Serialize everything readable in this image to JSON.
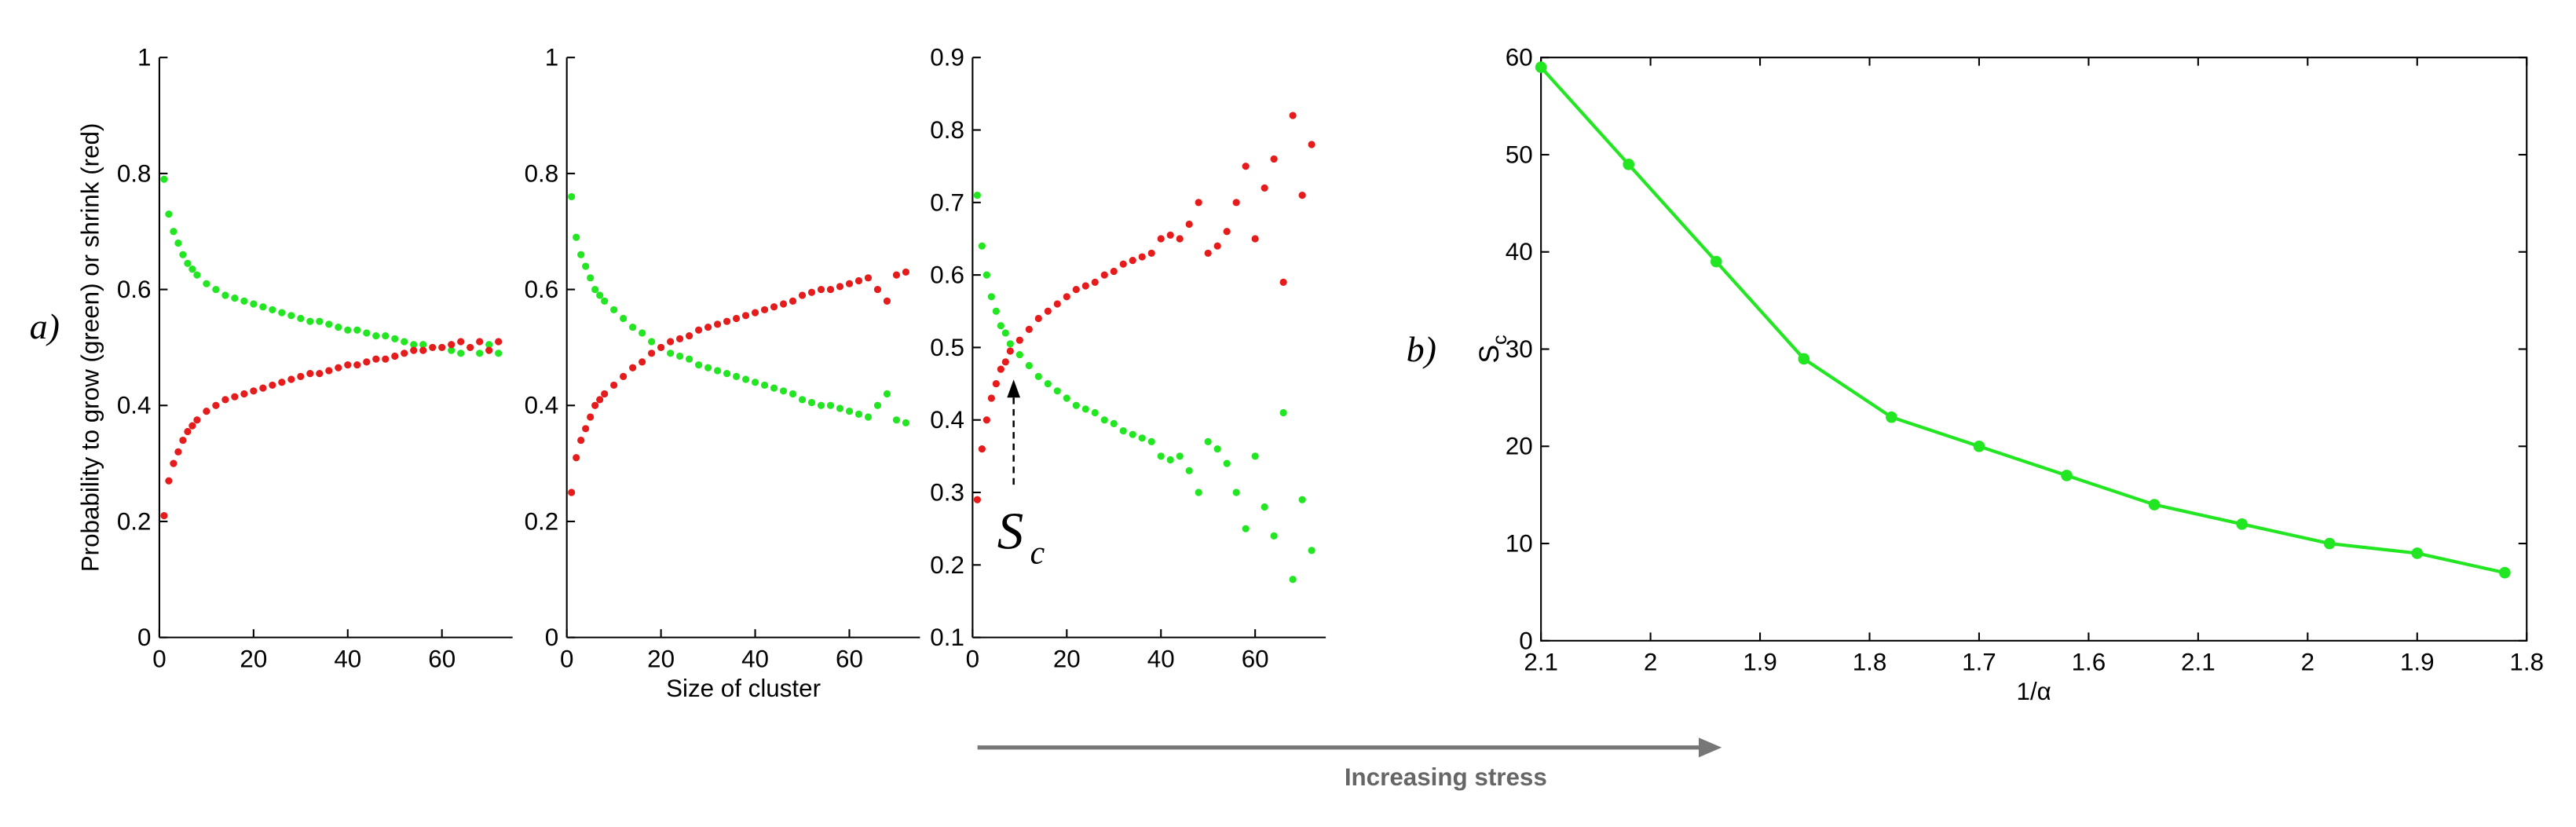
{
  "labels": {
    "a": "a)",
    "b": "b)",
    "stress": "Increasing stress"
  },
  "chart_data": [
    {
      "type": "scatter",
      "ylabel": "Probability to grow (green) or shrink (red)",
      "xlim": [
        0,
        75
      ],
      "xticks": [
        0,
        20,
        40,
        60
      ],
      "ylim": [
        0,
        1
      ],
      "yticks": [
        0,
        0.2,
        0.4,
        0.6,
        0.8,
        1
      ],
      "x": [
        1,
        2,
        3,
        4,
        5,
        6,
        7,
        8,
        10,
        12,
        14,
        16,
        18,
        20,
        22,
        24,
        26,
        28,
        30,
        32,
        34,
        36,
        38,
        40,
        42,
        44,
        46,
        48,
        50,
        52,
        54,
        56,
        58,
        60,
        62,
        64,
        66,
        68,
        70,
        72
      ],
      "series": [
        {
          "color": "#22e622",
          "values": [
            0.79,
            0.73,
            0.7,
            0.68,
            0.66,
            0.645,
            0.635,
            0.625,
            0.61,
            0.6,
            0.59,
            0.585,
            0.58,
            0.575,
            0.57,
            0.565,
            0.56,
            0.555,
            0.55,
            0.545,
            0.545,
            0.54,
            0.535,
            0.53,
            0.53,
            0.525,
            0.52,
            0.52,
            0.515,
            0.51,
            0.505,
            0.505,
            0.5,
            0.5,
            0.495,
            0.49,
            0.5,
            0.49,
            0.505,
            0.49
          ]
        },
        {
          "color": "#e61c1c",
          "values": [
            0.21,
            0.27,
            0.3,
            0.32,
            0.34,
            0.355,
            0.365,
            0.375,
            0.39,
            0.4,
            0.41,
            0.415,
            0.42,
            0.425,
            0.43,
            0.435,
            0.44,
            0.445,
            0.45,
            0.455,
            0.455,
            0.46,
            0.465,
            0.47,
            0.47,
            0.475,
            0.48,
            0.48,
            0.485,
            0.49,
            0.495,
            0.495,
            0.5,
            0.5,
            0.505,
            0.51,
            0.5,
            0.51,
            0.495,
            0.51
          ]
        }
      ]
    },
    {
      "type": "scatter",
      "xlabel": "Size of cluster",
      "xlim": [
        0,
        75
      ],
      "xticks": [
        0,
        20,
        40,
        60
      ],
      "ylim": [
        0,
        1
      ],
      "yticks": [
        0,
        0.2,
        0.4,
        0.6,
        0.8,
        1
      ],
      "x": [
        1,
        2,
        3,
        4,
        5,
        6,
        7,
        8,
        10,
        12,
        14,
        16,
        18,
        20,
        22,
        24,
        26,
        28,
        30,
        32,
        34,
        36,
        38,
        40,
        42,
        44,
        46,
        48,
        50,
        52,
        54,
        56,
        58,
        60,
        62,
        64,
        66,
        68,
        70,
        72
      ],
      "series": [
        {
          "color": "#22e622",
          "values": [
            0.76,
            0.69,
            0.66,
            0.64,
            0.62,
            0.6,
            0.59,
            0.58,
            0.565,
            0.55,
            0.535,
            0.525,
            0.51,
            0.5,
            0.49,
            0.485,
            0.48,
            0.47,
            0.465,
            0.46,
            0.455,
            0.45,
            0.445,
            0.44,
            0.435,
            0.43,
            0.425,
            0.42,
            0.41,
            0.405,
            0.4,
            0.4,
            0.395,
            0.39,
            0.385,
            0.38,
            0.4,
            0.42,
            0.375,
            0.37
          ]
        },
        {
          "color": "#e61c1c",
          "values": [
            0.25,
            0.31,
            0.34,
            0.36,
            0.38,
            0.4,
            0.41,
            0.42,
            0.435,
            0.45,
            0.465,
            0.475,
            0.49,
            0.5,
            0.51,
            0.515,
            0.52,
            0.53,
            0.535,
            0.54,
            0.545,
            0.55,
            0.555,
            0.56,
            0.565,
            0.57,
            0.575,
            0.58,
            0.59,
            0.595,
            0.6,
            0.6,
            0.605,
            0.61,
            0.615,
            0.62,
            0.6,
            0.58,
            0.625,
            0.63
          ]
        }
      ]
    },
    {
      "type": "scatter",
      "annotation": {
        "text": "S",
        "sub": "c"
      },
      "xlim": [
        0,
        75
      ],
      "xticks": [
        0,
        20,
        40,
        60
      ],
      "ylim": [
        0.1,
        0.9
      ],
      "yticks": [
        0.1,
        0.2,
        0.3,
        0.4,
        0.5,
        0.6,
        0.7,
        0.8,
        0.9
      ],
      "x": [
        1,
        2,
        3,
        4,
        5,
        6,
        7,
        8,
        10,
        12,
        14,
        16,
        18,
        20,
        22,
        24,
        26,
        28,
        30,
        32,
        34,
        36,
        38,
        40,
        42,
        44,
        46,
        48,
        50,
        52,
        54,
        56,
        58,
        60,
        62,
        64,
        66,
        68,
        70,
        72
      ],
      "series": [
        {
          "color": "#22e622",
          "values": [
            0.71,
            0.64,
            0.6,
            0.57,
            0.55,
            0.53,
            0.52,
            0.505,
            0.49,
            0.475,
            0.46,
            0.45,
            0.44,
            0.43,
            0.42,
            0.415,
            0.41,
            0.4,
            0.395,
            0.385,
            0.38,
            0.375,
            0.37,
            0.35,
            0.345,
            0.35,
            0.33,
            0.3,
            0.37,
            0.36,
            0.34,
            0.3,
            0.25,
            0.35,
            0.28,
            0.24,
            0.41,
            0.18,
            0.29,
            0.22
          ]
        },
        {
          "color": "#e61c1c",
          "values": [
            0.29,
            0.36,
            0.4,
            0.43,
            0.45,
            0.47,
            0.48,
            0.495,
            0.51,
            0.525,
            0.54,
            0.55,
            0.56,
            0.57,
            0.58,
            0.585,
            0.59,
            0.6,
            0.605,
            0.615,
            0.62,
            0.625,
            0.63,
            0.65,
            0.655,
            0.65,
            0.67,
            0.7,
            0.63,
            0.64,
            0.66,
            0.7,
            0.75,
            0.65,
            0.72,
            0.76,
            0.59,
            0.82,
            0.71,
            0.78
          ]
        }
      ]
    },
    {
      "type": "line",
      "ylabel": "S",
      "ylabel_sub": "c",
      "xlabel": "1/α",
      "color": "#22e622",
      "xlim": [
        0,
        9
      ],
      "xticks": [
        {
          "value": 0,
          "label": "2.1"
        },
        {
          "value": 1,
          "label": "2"
        },
        {
          "value": 2,
          "label": "1.9"
        },
        {
          "value": 3,
          "label": "1.8"
        },
        {
          "value": 4,
          "label": "1.7"
        },
        {
          "value": 5,
          "label": "1.6"
        },
        {
          "value": 6,
          "label": "2.1"
        },
        {
          "value": 7,
          "label": "2"
        },
        {
          "value": 8,
          "label": "1.9"
        },
        {
          "value": 9,
          "label": "1.8"
        }
      ],
      "ylim": [
        0,
        60
      ],
      "yticks": [
        0,
        10,
        20,
        30,
        40,
        50,
        60
      ],
      "x": [
        0,
        0.8,
        1.6,
        2.4,
        3.2,
        4,
        4.8,
        5.6,
        6.4,
        7.2,
        8,
        8.8
      ],
      "values": [
        59,
        49,
        39,
        29,
        23,
        20,
        17,
        14,
        12,
        10,
        9,
        7
      ]
    }
  ]
}
